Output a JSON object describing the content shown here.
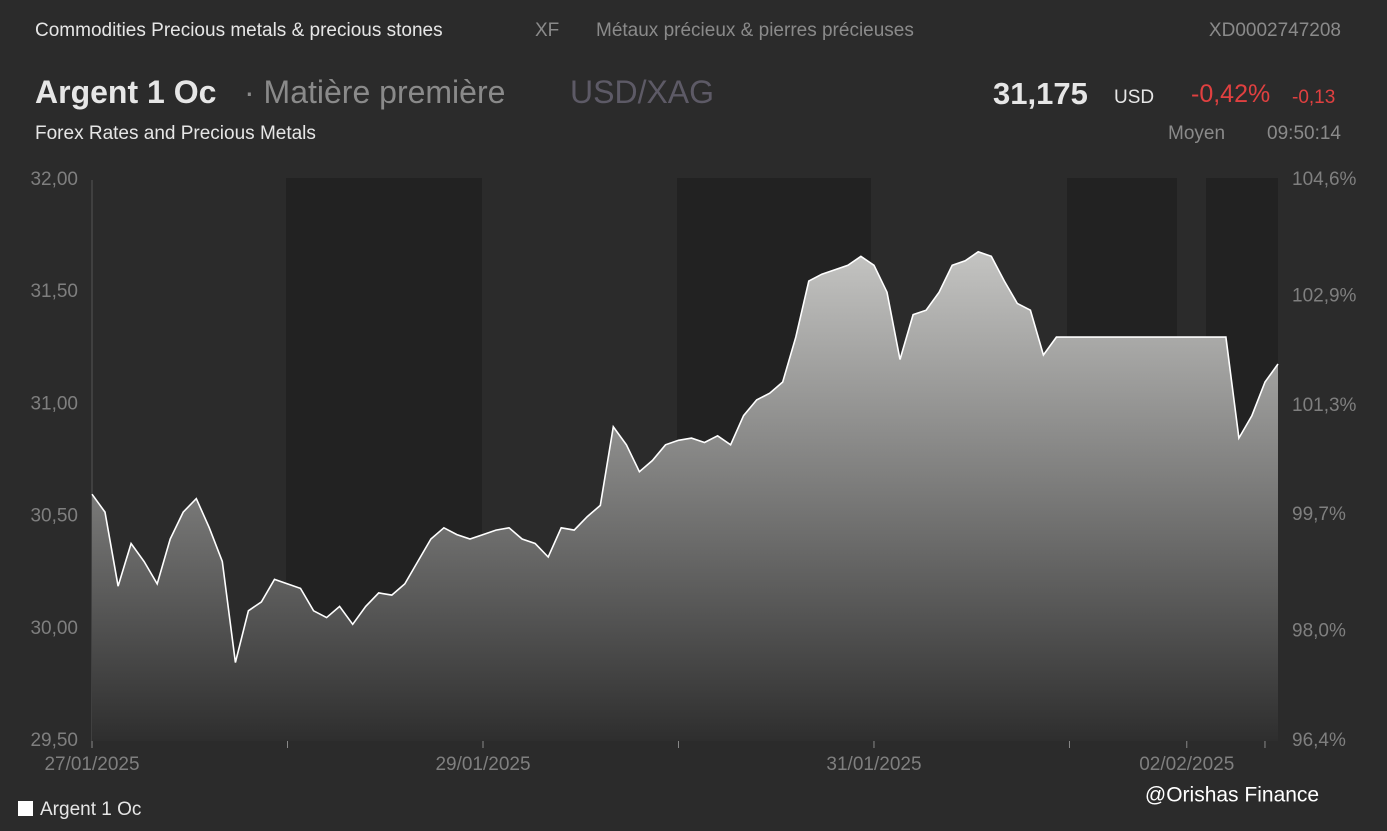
{
  "header": {
    "sector": "Commodities Precious metals & precious stones",
    "exchange": "XF",
    "sector_fr": "Métaux précieux & pierres précieuses",
    "isin": "XD0002747208",
    "name": "Argent 1 Oc",
    "kind": "· Matière première",
    "pair": "USD/XAG",
    "price": "31,175",
    "currency": "USD",
    "change_pct": "-0,42%",
    "change": "-0,13",
    "source": "Forex Rates and Precious Metals",
    "price_type": "Moyen",
    "time": "09:50:14"
  },
  "watermark": "@Orishas Finance",
  "chart_data": {
    "type": "area",
    "categories": [
      "27/01/2025",
      null,
      null,
      null,
      null,
      null,
      null,
      null,
      null,
      null,
      null,
      null,
      null,
      null,
      null,
      null,
      null,
      null,
      null,
      null,
      null,
      null,
      null,
      null,
      null,
      null,
      null,
      null,
      null,
      null,
      "29/01/2025",
      null,
      null,
      null,
      null,
      null,
      null,
      null,
      null,
      null,
      null,
      null,
      null,
      null,
      null,
      null,
      null,
      null,
      null,
      null,
      null,
      null,
      null,
      null,
      null,
      null,
      null,
      null,
      null,
      null,
      "31/01/2025",
      null,
      null,
      null,
      null,
      null,
      null,
      null,
      null,
      null,
      null,
      null,
      null,
      null,
      null,
      null,
      null,
      null,
      null,
      null,
      null,
      null,
      null,
      null,
      "02/02/2025",
      null,
      null,
      null,
      null,
      null,
      null,
      null
    ],
    "series": [
      {
        "name": "Argent 1 Oc",
        "color": "#ffffff",
        "values": [
          30.6,
          30.52,
          30.19,
          30.38,
          30.3,
          30.2,
          30.4,
          30.52,
          30.58,
          30.45,
          30.3,
          29.85,
          30.08,
          30.12,
          30.22,
          30.2,
          30.18,
          30.08,
          30.05,
          30.1,
          30.02,
          30.1,
          30.16,
          30.15,
          30.2,
          30.3,
          30.4,
          30.45,
          30.42,
          30.4,
          30.42,
          30.44,
          30.45,
          30.4,
          30.38,
          30.32,
          30.45,
          30.44,
          30.5,
          30.55,
          30.9,
          30.82,
          30.7,
          30.75,
          30.82,
          30.84,
          30.85,
          30.83,
          30.86,
          30.82,
          30.95,
          31.02,
          31.05,
          31.1,
          31.3,
          31.55,
          31.58,
          31.6,
          31.62,
          31.66,
          31.62,
          31.5,
          31.2,
          31.4,
          31.42,
          31.5,
          31.62,
          31.64,
          31.68,
          31.66,
          31.55,
          31.45,
          31.42,
          31.22,
          31.3,
          31.3,
          31.3,
          31.3,
          31.3,
          31.3,
          31.3,
          31.3,
          31.3,
          31.3,
          31.3,
          31.3,
          31.3,
          31.3,
          30.85,
          30.95,
          31.1,
          31.18
        ]
      }
    ],
    "ylim": [
      29.5,
      32.0
    ],
    "yticks": [
      {
        "value": 29.5,
        "label": "29,50"
      },
      {
        "value": 30.0,
        "label": "30,00"
      },
      {
        "value": 30.5,
        "label": "30,50"
      },
      {
        "value": 31.0,
        "label": "31,00"
      },
      {
        "value": 31.5,
        "label": "31,50"
      },
      {
        "value": 32.0,
        "label": "32,00"
      }
    ],
    "y2lim": [
      96.4,
      104.6
    ],
    "y2ticks": [
      {
        "value": 96.4,
        "label": "96,4%"
      },
      {
        "value": 98.0,
        "label": "98,0%"
      },
      {
        "value": 99.7,
        "label": "99,7%"
      },
      {
        "value": 101.3,
        "label": "101,3%"
      },
      {
        "value": 102.9,
        "label": "102,9%"
      },
      {
        "value": 104.6,
        "label": "104,6%"
      }
    ],
    "legend": "bottom-left"
  }
}
